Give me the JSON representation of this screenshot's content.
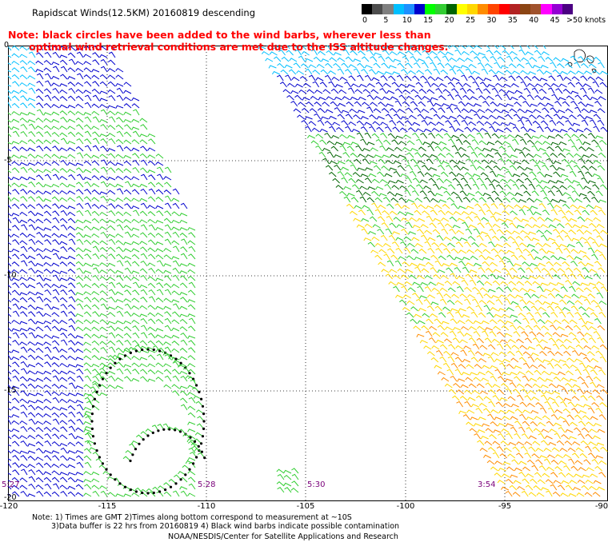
{
  "header": {
    "title": "Rapidscat Winds(12.5KM) 20160819 descending",
    "note_line1": "Note: black circles have been added to the wind barbs, wherever less than",
    "note_line2": "      optimal wind retrieval conditions are met due to the ISS altitude changes."
  },
  "legend": {
    "labels": [
      "0",
      "5",
      "10",
      "15",
      "20",
      "25",
      "30",
      "35",
      "40",
      "45",
      ">50 knots"
    ],
    "colors": [
      "#000000",
      "#4d4d4d",
      "#7f7f7f",
      "#00bfff",
      "#1e90ff",
      "#0000cd",
      "#00ff00",
      "#32cd32",
      "#006400",
      "#ffff00",
      "#ffd700",
      "#ff8c00",
      "#ff4500",
      "#ff0000",
      "#b22222",
      "#8b4513",
      "#a0522d",
      "#ff00ff",
      "#9400d3",
      "#4b0082"
    ]
  },
  "map": {
    "lat_labels": [
      "0",
      "-5",
      "-10",
      "-15",
      "-20"
    ],
    "lon_labels": [
      "-120",
      "-115",
      "-110",
      "-105",
      "-100",
      "-95",
      "-90"
    ],
    "times": [
      "5:27",
      "5:28",
      "5:30",
      "3:54"
    ],
    "band_colors": {
      "cyan": "#00bfff",
      "blue": "#0000cd",
      "green": "#32cd32",
      "darkgreen": "#006400",
      "yellow": "#ffd700",
      "orange": "#ff8c00"
    }
  },
  "footer": {
    "line1": "Note: 1) Times are GMT 2)Times along bottom correspond to measurement at ~10S",
    "line2": "3)Data buffer is 22 hrs from 20160819 4) Black wind barbs indicate possible contamination",
    "credit": "NOAA/NESDIS/Center for Satellite Applications and Research"
  }
}
